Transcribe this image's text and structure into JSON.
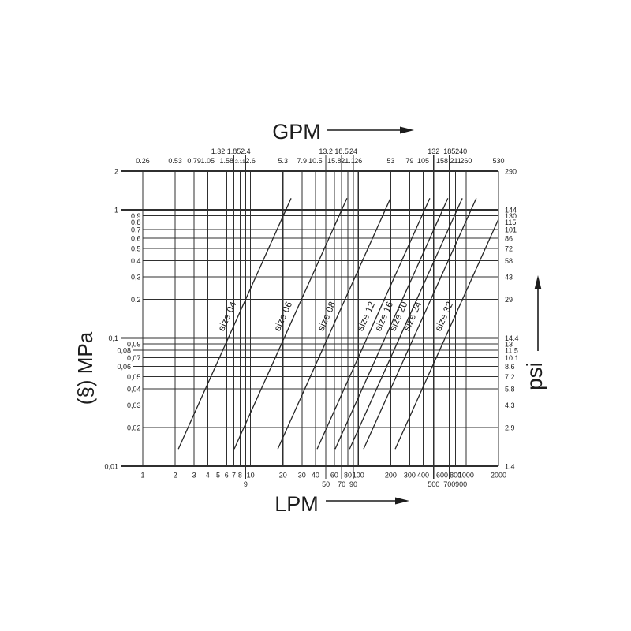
{
  "titles": {
    "top": "GPM",
    "bottom": "LPM",
    "left": "(§) MPa",
    "right": "psi"
  },
  "chart_data": {
    "type": "line",
    "title": "",
    "scale": "log-log",
    "grid": true,
    "x_axis": {
      "top_label": "GPM",
      "bottom_label": "LPM",
      "range_lpm": [
        1,
        2000
      ],
      "scale": "log"
    },
    "y_axis": {
      "left_label": "(§) MPa",
      "right_label": "psi",
      "range_mpa": [
        0.01,
        2
      ],
      "scale": "log"
    },
    "x_ticks": [
      {
        "v": 1,
        "lpm": "1",
        "gpm": "0.26",
        "t": 1,
        "b": 1
      },
      {
        "v": 2,
        "lpm": "2",
        "gpm": "0.53",
        "t": 1,
        "b": 1
      },
      {
        "v": 3,
        "lpm": "3",
        "gpm": "0.79",
        "t": 1,
        "b": 1
      },
      {
        "v": 4,
        "lpm": "4",
        "gpm": "1.05",
        "t": 1,
        "b": 1
      },
      {
        "v": 5,
        "lpm": "5",
        "gpm": "1.32",
        "t": 2,
        "b": 1
      },
      {
        "v": 6,
        "lpm": "6",
        "gpm": "1.58",
        "t": 1,
        "b": 1
      },
      {
        "v": 7,
        "lpm": "7",
        "gpm": "1.85",
        "t": 2,
        "b": 1
      },
      {
        "v": 8,
        "lpm": "8",
        "gpm": "2.11",
        "t": 1,
        "b": 1,
        "small": true
      },
      {
        "v": 9,
        "lpm": "9",
        "gpm": "2.4",
        "t": 2,
        "b": 2
      },
      {
        "v": 10,
        "lpm": "10",
        "gpm": "2.6",
        "t": 1,
        "b": 1
      },
      {
        "v": 20,
        "lpm": "20",
        "gpm": "5.3",
        "t": 1,
        "b": 1
      },
      {
        "v": 30,
        "lpm": "30",
        "gpm": "7.9",
        "t": 1,
        "b": 1
      },
      {
        "v": 40,
        "lpm": "40",
        "gpm": "10.5",
        "t": 1,
        "b": 1
      },
      {
        "v": 50,
        "lpm": "50",
        "gpm": "13.2",
        "t": 2,
        "b": 2
      },
      {
        "v": 60,
        "lpm": "60",
        "gpm": "15.8",
        "t": 1,
        "b": 1
      },
      {
        "v": 70,
        "lpm": "70",
        "gpm": "18.5",
        "t": 2,
        "b": 2
      },
      {
        "v": 80,
        "lpm": "80",
        "gpm": "21.1",
        "t": 1,
        "b": 1
      },
      {
        "v": 90,
        "lpm": "90",
        "gpm": "24",
        "t": 2,
        "b": 2
      },
      {
        "v": 100,
        "lpm": "100",
        "gpm": "26",
        "t": 1,
        "b": 1
      },
      {
        "v": 200,
        "lpm": "200",
        "gpm": "53",
        "t": 1,
        "b": 1
      },
      {
        "v": 300,
        "lpm": "300",
        "gpm": "79",
        "t": 1,
        "b": 1
      },
      {
        "v": 400,
        "lpm": "400",
        "gpm": "105",
        "t": 1,
        "b": 1
      },
      {
        "v": 500,
        "lpm": "500",
        "gpm": "132",
        "t": 2,
        "b": 2
      },
      {
        "v": 600,
        "lpm": "600",
        "gpm": "158",
        "t": 1,
        "b": 1
      },
      {
        "v": 700,
        "lpm": "700",
        "gpm": "185",
        "t": 2,
        "b": 2
      },
      {
        "v": 800,
        "lpm": "800",
        "gpm": "211",
        "t": 1,
        "b": 1
      },
      {
        "v": 900,
        "lpm": "900",
        "gpm": "240",
        "t": 2,
        "b": 2
      },
      {
        "v": 1000,
        "lpm": "1000",
        "gpm": "260",
        "t": 1,
        "b": 1
      },
      {
        "v": 2000,
        "lpm": "2000",
        "gpm": "530",
        "t": 1,
        "b": 1
      }
    ],
    "y_ticks": [
      {
        "v": 2,
        "l": "2",
        "r": "290",
        "s": "major"
      },
      {
        "v": 1,
        "l": "1",
        "r": "144",
        "s": "major"
      },
      {
        "v": 0.9,
        "l": "0,9",
        "r": "130",
        "s": "minor"
      },
      {
        "v": 0.8,
        "l": "0,8",
        "r": "115",
        "s": "minor"
      },
      {
        "v": 0.7,
        "l": "0,7",
        "r": "101",
        "s": "minor"
      },
      {
        "v": 0.6,
        "l": "0,6",
        "r": "86",
        "s": "minor"
      },
      {
        "v": 0.5,
        "l": "0,5",
        "r": "72",
        "s": "minor"
      },
      {
        "v": 0.4,
        "l": "0,4",
        "r": "58",
        "s": "minor"
      },
      {
        "v": 0.3,
        "l": "0,3",
        "r": "43",
        "s": "minor"
      },
      {
        "v": 0.2,
        "l": "0,2",
        "r": "29",
        "s": "minor"
      },
      {
        "v": 0.1,
        "l": "0,1",
        "r": "14.4",
        "s": "major"
      },
      {
        "v": 0.09,
        "l": "0,09",
        "r": "13",
        "s": "minor"
      },
      {
        "v": 0.08,
        "l": "0,08",
        "r": "11.5",
        "s": "mid"
      },
      {
        "v": 0.07,
        "l": "0,07",
        "r": "10.1",
        "s": "minor"
      },
      {
        "v": 0.06,
        "l": "0,06",
        "r": "8.6",
        "s": "mid"
      },
      {
        "v": 0.05,
        "l": "0,05",
        "r": "7.2",
        "s": "minor"
      },
      {
        "v": 0.04,
        "l": "0,04",
        "r": "5.8",
        "s": "minor"
      },
      {
        "v": 0.03,
        "l": "0,03",
        "r": "4.3",
        "s": "minor"
      },
      {
        "v": 0.02,
        "l": "0,02",
        "r": "2.9",
        "s": "minor"
      },
      {
        "v": 0.01,
        "l": "0,01",
        "r": "1.4",
        "s": "major"
      }
    ],
    "series": [
      {
        "name": "size 04",
        "points": [
          [
            2.14,
            0.0136
          ],
          [
            23.8,
            1.23
          ]
        ]
      },
      {
        "name": "size 06",
        "points": [
          [
            7.06,
            0.0136
          ],
          [
            78.5,
            1.23
          ]
        ]
      },
      {
        "name": "size 08",
        "points": [
          [
            17.9,
            0.0136
          ],
          [
            199,
            1.23
          ]
        ]
      },
      {
        "name": "size 12",
        "points": [
          [
            41.5,
            0.0136
          ],
          [
            461,
            1.23
          ]
        ]
      },
      {
        "name": "size 16",
        "points": [
          [
            61,
            0.0136
          ],
          [
            678,
            1.23
          ]
        ]
      },
      {
        "name": "size 20",
        "points": [
          [
            83,
            0.0136
          ],
          [
            923,
            1.23
          ]
        ]
      },
      {
        "name": "size 24",
        "points": [
          [
            112,
            0.0136
          ],
          [
            1245,
            1.23
          ]
        ]
      },
      {
        "name": "size 32",
        "points": [
          [
            220,
            0.0136
          ],
          [
            2000,
            0.844
          ]
        ]
      }
    ],
    "series_label_pressure": 0.1445
  }
}
